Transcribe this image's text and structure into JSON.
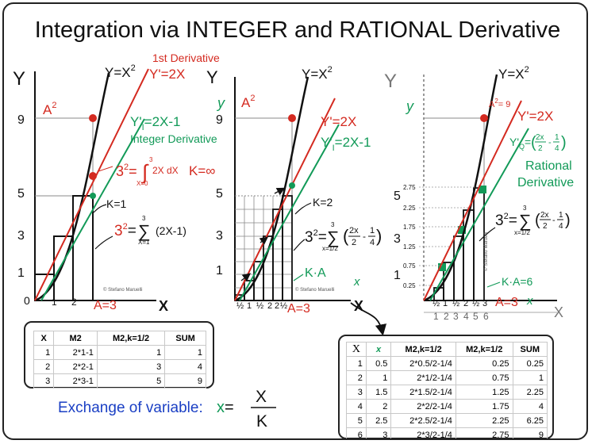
{
  "title": "Integration via INTEGER and RATIONAL Derivative",
  "colors": {
    "red": "#d42a20",
    "green": "#129a58",
    "black": "#111111",
    "blue": "#1a3fc4",
    "grey": "#777777"
  },
  "panel1": {
    "y_axis": "Y",
    "x_axis": "X",
    "a2": "A",
    "a2_sup": "2",
    "curve_label": "Y=X",
    "curve_sup": "2",
    "first_deriv_heading": "1st Derivative",
    "first_deriv": "Y'=2X",
    "integer_deriv": "Y'",
    "integer_deriv_sub": "I",
    "integer_deriv_rest": "=2X-1",
    "integer_deriv_heading": "Integer Derivative",
    "integral_lhs": "3",
    "integral_sup": "2",
    "integral_upper": "3",
    "integral_lower": "X=0",
    "integral_body": "2X dX",
    "k_inf": "K=∞",
    "k1": "K=1",
    "sum_lhs": "3",
    "sum_sup": "2",
    "sum_upper": "3",
    "sum_lower": "X=1",
    "sum_body": "(2X-1)",
    "a_eq": "A=3",
    "copyright": "© Stefano Maruelli",
    "y_ticks": [
      "9",
      "5",
      "3",
      "1",
      "0"
    ],
    "x_ticks": [
      "1",
      "2"
    ]
  },
  "panel2": {
    "y_axis": "Y",
    "y_axis_script": "y",
    "x_axis": "X",
    "x_axis_script": "x",
    "a2": "A",
    "a2_sup": "2",
    "curve_label": "Y=X",
    "curve_sup": "2",
    "deriv": "Y'=2X",
    "integer_deriv": "Y'",
    "integer_deriv_sub": "I",
    "integer_deriv_rest": "=2X-1",
    "k2": "K=2",
    "ka": "K·A",
    "sum_lhs": "3",
    "sum_sup": "2",
    "sum_upper": "3",
    "sum_lower": "x=1/2",
    "frac_num1": "2x",
    "frac_den1": "2",
    "frac_num2": "1",
    "frac_den2": "4",
    "a_eq": "A=3",
    "copyright": "© Stefano Maruelli",
    "y_ticks": [
      "9",
      "5",
      "3",
      "1"
    ],
    "x_ticks": [
      "½",
      "1",
      "½",
      "2",
      "2",
      "½",
      "3"
    ]
  },
  "panel3": {
    "y_axis": "Y",
    "y_axis_script": "y",
    "x_axis": "X",
    "x_axis_script": "x",
    "a2_eq": "A",
    "a2_sup": "2",
    "a2_val": "= 9",
    "curve_label": "Y=X",
    "curve_sup": "2",
    "deriv": "Y'=2X",
    "q_deriv": "Y'",
    "q_sub": "Q",
    "rational_heading": "Rational",
    "derivative_heading": "Derivative",
    "sum_lhs": "3",
    "sum_sup": "2",
    "sum_upper": "3",
    "sum_lower": "x=1/2",
    "frac_num1": "2x",
    "frac_den1": "2",
    "frac_num2": "1",
    "frac_den2": "4",
    "ka": "K·A=6",
    "a_eq": "A=3",
    "copyright": "© Stefano Maruelli",
    "y_big_ticks": [
      "5",
      "3",
      "1"
    ],
    "y_small_ticks": [
      "2.75",
      "2.25",
      "1.75",
      "1.25",
      "0.75",
      "0.25"
    ],
    "x_ticks": [
      "½",
      "1",
      "½",
      "2",
      "½",
      "3"
    ],
    "x_big_ticks": [
      "1",
      "2",
      "3",
      "4",
      "5",
      "6"
    ],
    "big_x": "X"
  },
  "table1": {
    "headers": [
      "X",
      "M2",
      "M2,k=1/2",
      "SUM"
    ],
    "rows": [
      [
        "1",
        "2*1-1",
        "1",
        "1"
      ],
      [
        "2",
        "2*2-1",
        "3",
        "4"
      ],
      [
        "3",
        "2*3-1",
        "5",
        "9"
      ]
    ]
  },
  "table2": {
    "headers": [
      "X",
      "x",
      "M2,k=1/2",
      "M2,k=1/2",
      "SUM"
    ],
    "rows": [
      [
        "1",
        "0.5",
        "2*0.5/2-1/4",
        "0.25",
        "0.25"
      ],
      [
        "2",
        "1",
        "2*1/2-1/4",
        "0.75",
        "1"
      ],
      [
        "3",
        "1.5",
        "2*1.5/2-1/4",
        "1.25",
        "2.25"
      ],
      [
        "4",
        "2",
        "2*2/2-1/4",
        "1.75",
        "4"
      ],
      [
        "5",
        "2.5",
        "2*2.5/2-1/4",
        "2.25",
        "6.25"
      ],
      [
        "6",
        "3",
        "2*3/2-1/4",
        "2.75",
        "9"
      ]
    ]
  },
  "exchange": {
    "label": "Exchange of variable:",
    "lhs": "x",
    "eq": "=",
    "num": "X",
    "den": "K"
  }
}
